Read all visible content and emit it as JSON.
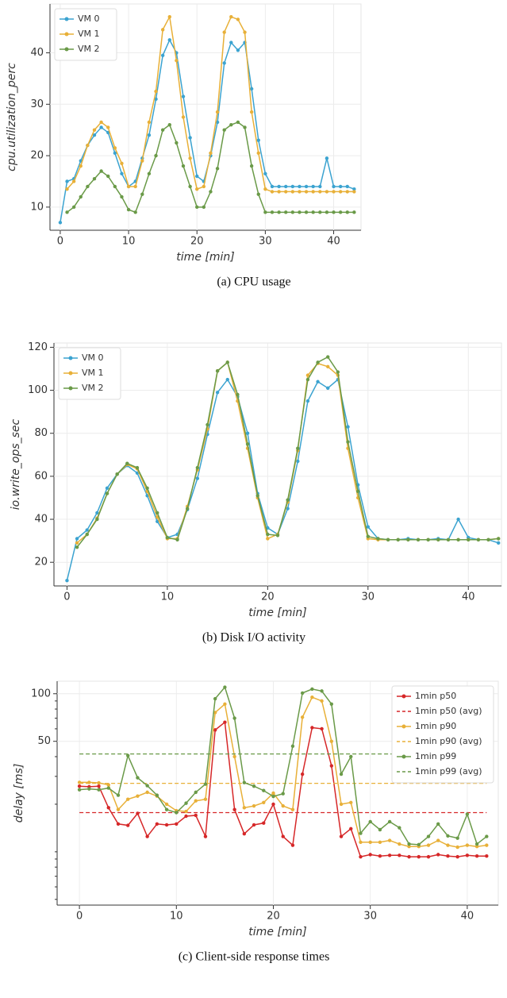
{
  "chart_data": [
    {
      "type": "line",
      "caption": "(a) CPU usage",
      "xlabel": "time [min]",
      "ylabel": "cpu.utilization_perc",
      "grid": true,
      "legend": "upper left",
      "x": [
        0,
        1,
        2,
        3,
        4,
        5,
        6,
        7,
        8,
        9,
        10,
        11,
        12,
        13,
        14,
        15,
        16,
        17,
        18,
        19,
        20,
        21,
        22,
        23,
        24,
        25,
        26,
        27,
        28,
        29,
        30,
        31,
        32,
        33,
        34,
        35,
        36,
        37,
        38,
        39,
        40,
        41,
        42,
        43
      ],
      "xlim": [
        -1.5,
        44
      ],
      "xticks": [
        0,
        10,
        20,
        30,
        40
      ],
      "ylim": [
        5.5,
        49.5
      ],
      "yticks": [
        10,
        20,
        30,
        40
      ],
      "series": [
        {
          "name": "VM 0",
          "color": "#3ba3d0",
          "values": [
            7,
            15,
            15.5,
            19,
            22,
            24,
            25.5,
            24.5,
            20.5,
            16.5,
            14,
            15,
            19.5,
            24,
            31,
            39.5,
            42.5,
            40,
            31.5,
            23.5,
            16,
            15,
            20,
            26.5,
            38,
            42,
            40.5,
            42,
            33,
            23,
            16.5,
            14,
            14,
            14,
            14,
            14,
            14,
            14,
            14,
            19.5,
            14,
            14,
            14,
            13.5
          ]
        },
        {
          "name": "VM 1",
          "color": "#e8b038",
          "values": [
            null,
            13.5,
            15,
            18,
            22,
            25,
            26.5,
            25.5,
            21.5,
            18.5,
            14,
            14,
            19,
            26.5,
            32.5,
            44.5,
            47,
            38.5,
            27.5,
            19.5,
            13.5,
            14,
            20.5,
            28.5,
            44,
            47,
            46.5,
            44,
            28.5,
            20.5,
            13.5,
            13,
            13,
            13,
            13,
            13,
            13,
            13,
            13,
            13,
            13,
            13,
            13,
            13
          ]
        },
        {
          "name": "VM 2",
          "color": "#6a9a48",
          "values": [
            null,
            9,
            10,
            12,
            14,
            15.5,
            17,
            16,
            14,
            12,
            9.5,
            9,
            12.5,
            16.5,
            20,
            25,
            26,
            22.5,
            18,
            14,
            10,
            10,
            13,
            17.5,
            25,
            26,
            26.5,
            25.5,
            18,
            12.5,
            9,
            9,
            9,
            9,
            9,
            9,
            9,
            9,
            9,
            9,
            9,
            9,
            9,
            9
          ]
        }
      ]
    },
    {
      "type": "line",
      "caption": "(b) Disk I/O activity",
      "xlabel": "time [min]",
      "ylabel": "io.write_ops_sec",
      "grid": true,
      "legend": "upper left",
      "x": [
        0,
        1,
        2,
        3,
        4,
        5,
        6,
        7,
        8,
        9,
        10,
        11,
        12,
        13,
        14,
        15,
        16,
        17,
        18,
        19,
        20,
        21,
        22,
        23,
        24,
        25,
        26,
        27,
        28,
        29,
        30,
        31,
        32,
        33,
        34,
        35,
        36,
        37,
        38,
        39,
        40,
        41,
        42,
        43
      ],
      "xlim": [
        -1.3,
        43.3
      ],
      "xticks": [
        0,
        10,
        20,
        30,
        40
      ],
      "ylim": [
        9,
        122
      ],
      "yticks": [
        20,
        40,
        60,
        80,
        100,
        120
      ],
      "series": [
        {
          "name": "VM 0",
          "color": "#3ba3d0",
          "values": [
            11.5,
            31,
            35,
            43,
            54.5,
            61,
            65,
            61.5,
            51,
            39,
            31.5,
            33,
            44.5,
            59,
            79.5,
            99,
            105,
            97,
            80,
            52,
            36,
            33,
            45,
            67,
            95,
            104,
            101,
            105,
            83,
            56,
            36.5,
            31,
            30.5,
            30.5,
            31,
            30.5,
            30.5,
            31,
            30.5,
            40,
            31.5,
            30.5,
            30.5,
            29
          ]
        },
        {
          "name": "VM 1",
          "color": "#e8b038",
          "values": [
            null,
            29,
            33,
            40.5,
            52,
            61,
            65.5,
            63.5,
            53,
            41,
            31,
            31,
            46,
            63,
            82,
            109,
            113,
            95,
            73,
            50,
            31,
            33,
            48,
            72,
            107,
            112.5,
            111,
            107,
            73,
            50,
            31,
            30.5,
            30.5,
            30.5,
            30.5,
            30.5,
            30.5,
            30.5,
            30.5,
            30.5,
            30.5,
            30.5,
            30.5,
            31
          ]
        },
        {
          "name": "VM 2",
          "color": "#6a9a48",
          "values": [
            null,
            27,
            33,
            40,
            52,
            61,
            66,
            64,
            54.5,
            43,
            31.5,
            30.5,
            45,
            64,
            84,
            109,
            113,
            98,
            75,
            51,
            33,
            32.5,
            49,
            73,
            105,
            113,
            115.5,
            108.5,
            76,
            53,
            32,
            31,
            30.5,
            30.5,
            30.5,
            30.5,
            30.5,
            30.5,
            30.5,
            30.5,
            30.5,
            30.5,
            30.5,
            31
          ]
        }
      ]
    },
    {
      "type": "line",
      "caption": "(c) Client-side response times",
      "xlabel": "time [min]",
      "ylabel": "delay [ms]",
      "grid": true,
      "ylog": true,
      "legend": "upper right",
      "x": [
        0,
        1,
        2,
        3,
        4,
        5,
        6,
        7,
        8,
        9,
        10,
        11,
        12,
        13,
        14,
        15,
        16,
        17,
        18,
        19,
        20,
        21,
        22,
        23,
        24,
        25,
        26,
        27,
        28,
        29,
        30,
        31,
        32,
        33,
        34,
        35,
        36,
        37,
        38,
        39,
        40,
        41,
        42
      ],
      "xlim": [
        -2.3,
        43.2
      ],
      "xticks": [
        0,
        10,
        20,
        30,
        40
      ],
      "ylim": [
        4.6,
        120
      ],
      "yticks": [
        50,
        100
      ],
      "yminorticks": [
        5,
        6,
        7,
        8,
        9,
        10,
        20,
        30,
        40,
        60,
        70,
        80,
        90
      ],
      "series": [
        {
          "name": "1min p50",
          "color": "#d62728",
          "values": [
            26,
            25.8,
            26,
            19,
            15,
            14.7,
            17.5,
            12.5,
            15,
            14.8,
            15,
            16.8,
            17,
            12.5,
            59,
            66,
            18.5,
            13,
            14.8,
            15.2,
            20,
            12.5,
            11,
            31,
            61,
            60,
            35,
            12.5,
            14,
            9.3,
            9.6,
            9.4,
            9.5,
            9.5,
            9.3,
            9.3,
            9.3,
            9.6,
            9.4,
            9.3,
            9.5,
            9.4,
            9.4
          ]
        },
        {
          "name": "1min p50 (avg)",
          "color": "#d62728",
          "dashed": true,
          "value": 17.7
        },
        {
          "name": "1min p90",
          "color": "#e8b038",
          "values": [
            27.5,
            27.5,
            27.3,
            26.5,
            18.5,
            21.5,
            22.5,
            23.8,
            22.5,
            20,
            18.2,
            18,
            21,
            21.5,
            76,
            86,
            40,
            19,
            19.5,
            20.5,
            23.5,
            19.5,
            18.5,
            71,
            95,
            90,
            50,
            20,
            20.5,
            11.5,
            11.5,
            11.5,
            11.8,
            11.2,
            10.8,
            10.8,
            11,
            11.8,
            11,
            10.7,
            11,
            10.8,
            11
          ]
        },
        {
          "name": "1min p90 (avg)",
          "color": "#e8b038",
          "dashed": true,
          "value": 27.1
        },
        {
          "name": "1min p99",
          "color": "#6a9a48",
          "values": [
            24.7,
            25,
            24.7,
            25.3,
            22.8,
            40.6,
            29.4,
            26.2,
            22.8,
            18.5,
            17.7,
            20.3,
            23.8,
            26.8,
            93,
            110,
            70,
            27.4,
            26,
            24.4,
            22.4,
            23.3,
            46.6,
            101,
            107,
            104,
            86,
            31,
            40,
            13.1,
            15.5,
            13.8,
            15.5,
            14.2,
            11.2,
            11.1,
            12.5,
            15,
            12.6,
            12.2,
            17.3,
            11.2,
            12.5
          ]
        },
        {
          "name": "1min p99 (avg)",
          "color": "#6a9a48",
          "dashed": true,
          "value": 41.6
        }
      ]
    }
  ]
}
